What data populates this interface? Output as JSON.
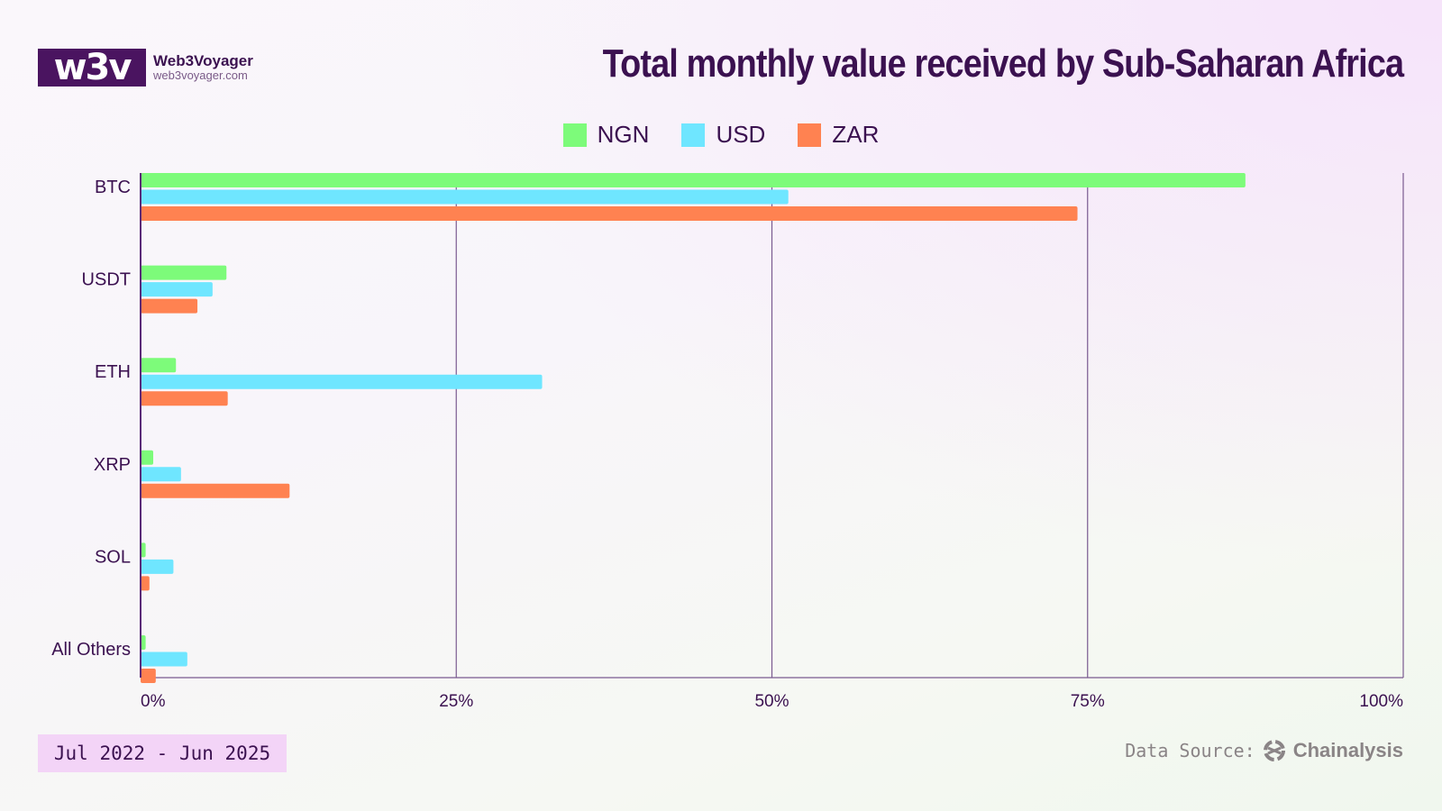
{
  "brand": {
    "logo_text": "w3v",
    "name": "Web3Voyager",
    "url": "web3voyager.com"
  },
  "date_range": "Jul 2022 - Jun 2025",
  "source": {
    "label": "Data Source:",
    "brand": "Chainalysis"
  },
  "chart_data": {
    "type": "bar",
    "orientation": "horizontal",
    "title": "Total monthly value received by Sub-Saharan Africa",
    "categories": [
      "BTC",
      "USDT",
      "ETH",
      "XRP",
      "SOL",
      "All Others"
    ],
    "series": [
      {
        "name": "NGN",
        "color": "#7dfb7a",
        "values": [
          87.5,
          6.8,
          2.8,
          1.0,
          0.4,
          0.4
        ]
      },
      {
        "name": "USD",
        "color": "#6fe6ff",
        "values": [
          51.3,
          5.7,
          31.8,
          3.2,
          2.6,
          3.7
        ]
      },
      {
        "name": "ZAR",
        "color": "#ff8251",
        "values": [
          74.2,
          4.5,
          6.9,
          11.8,
          0.7,
          1.2
        ]
      }
    ],
    "xlim": [
      0,
      100
    ],
    "xticks": [
      "0%",
      "25%",
      "50%",
      "75%",
      "100%"
    ],
    "xlabel": "",
    "ylabel": "",
    "grid": true,
    "legend": "top-center"
  }
}
